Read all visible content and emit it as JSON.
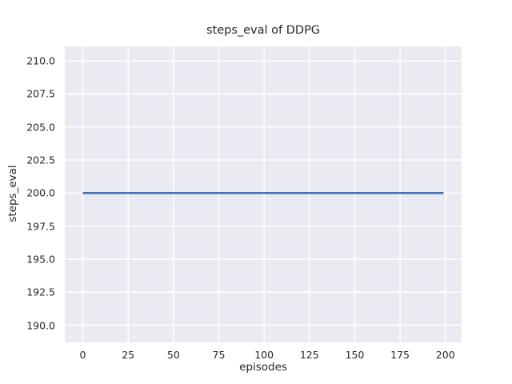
{
  "chart_data": {
    "type": "line",
    "title": "steps_eval of DDPG",
    "xlabel": "episodes",
    "ylabel": "steps_eval",
    "xlim": [
      -9.95,
      208.95
    ],
    "ylim": [
      188.7,
      211.1
    ],
    "xticks": [
      {
        "value": 0,
        "label": "0"
      },
      {
        "value": 25,
        "label": "25"
      },
      {
        "value": 50,
        "label": "50"
      },
      {
        "value": 75,
        "label": "75"
      },
      {
        "value": 100,
        "label": "100"
      },
      {
        "value": 125,
        "label": "125"
      },
      {
        "value": 150,
        "label": "150"
      },
      {
        "value": 175,
        "label": "175"
      },
      {
        "value": 200,
        "label": "200"
      }
    ],
    "yticks": [
      {
        "value": 190.0,
        "label": "190.0"
      },
      {
        "value": 192.5,
        "label": "192.5"
      },
      {
        "value": 195.0,
        "label": "195.0"
      },
      {
        "value": 197.5,
        "label": "197.5"
      },
      {
        "value": 200.0,
        "label": "200.0"
      },
      {
        "value": 202.5,
        "label": "202.5"
      },
      {
        "value": 205.0,
        "label": "205.0"
      },
      {
        "value": 207.5,
        "label": "207.5"
      },
      {
        "value": 210.0,
        "label": "210.0"
      }
    ],
    "grid": true,
    "legend_position": "none",
    "colors": {
      "plot_background": "#eaeaf2",
      "grid_line": "#ffffff",
      "text": "#262626",
      "series_line": "#4c72b0"
    },
    "series": [
      {
        "name": "steps_eval",
        "color": "#4c72b0",
        "x": [
          0,
          199
        ],
        "values": [
          200.0,
          200.0
        ]
      }
    ]
  }
}
